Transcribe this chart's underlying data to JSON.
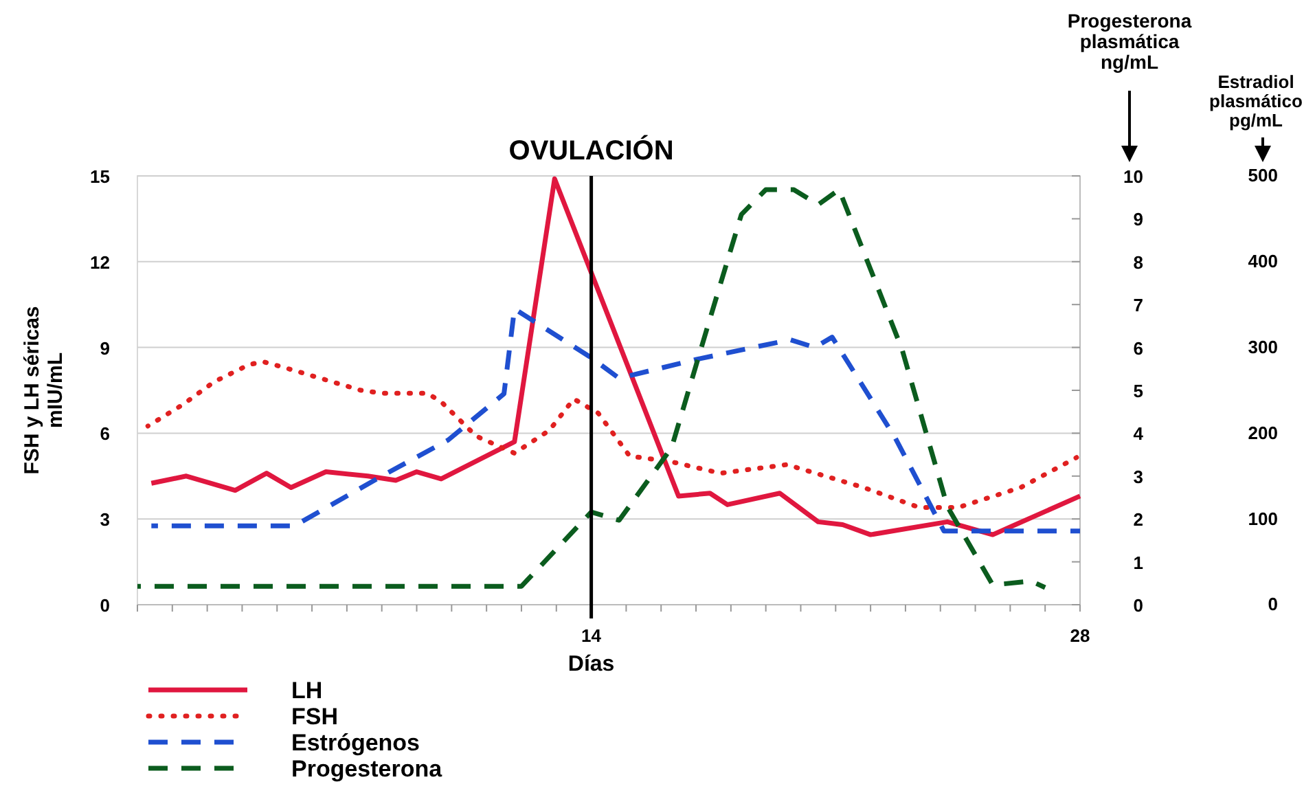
{
  "chart_data": {
    "type": "line",
    "xlabel": "Días",
    "ylabel": "FSH y LH séricas\nmIU/mL",
    "y2label": "Estradiol\nplasmático\npg/mL",
    "y3label": "Progesterona\nplasmática\nng/mL",
    "xlim": [
      1,
      28
    ],
    "xticks": [
      {
        "value": 1,
        "label": null
      },
      {
        "value": 2,
        "label": null
      },
      {
        "value": 3,
        "label": null
      },
      {
        "value": 4,
        "label": null
      },
      {
        "value": 5,
        "label": null
      },
      {
        "value": 6,
        "label": null
      },
      {
        "value": 7,
        "label": null
      },
      {
        "value": 8,
        "label": null
      },
      {
        "value": 9,
        "label": null
      },
      {
        "value": 10,
        "label": null
      },
      {
        "value": 11,
        "label": null
      },
      {
        "value": 12,
        "label": null
      },
      {
        "value": 13,
        "label": null
      },
      14,
      {
        "value": 15,
        "label": null
      },
      {
        "value": 16,
        "label": null
      },
      {
        "value": 17,
        "label": null
      },
      {
        "value": 18,
        "label": null
      },
      {
        "value": 19,
        "label": null
      },
      {
        "value": 20,
        "label": null
      },
      {
        "value": 21,
        "label": null
      },
      {
        "value": 22,
        "label": null
      },
      {
        "value": 23,
        "label": null
      },
      {
        "value": 24,
        "label": null
      },
      {
        "value": 25,
        "label": null
      },
      {
        "value": 26,
        "label": null
      },
      {
        "value": 27,
        "label": null
      },
      28
    ],
    "ylim": [
      0,
      15
    ],
    "yticks": [
      0,
      3,
      6,
      9,
      12,
      15
    ],
    "y2lim": [
      0,
      500
    ],
    "y2ticks": [
      0,
      100,
      200,
      300,
      400,
      500
    ],
    "y3lim": [
      0,
      10
    ],
    "y3ticks": [
      0,
      1,
      2,
      3,
      4,
      5,
      6,
      7,
      8,
      9,
      10
    ],
    "grid": "y",
    "legend": "bottom left",
    "ref_lines": [
      {
        "axis": "x",
        "value": 14,
        "label": "OVULACIÓN",
        "color": "#000000"
      }
    ],
    "series": [
      {
        "name": "LH",
        "color": "#e0173f",
        "line_style": "solid",
        "x": [
          1.4,
          2.4,
          3.8,
          4.7,
          5.4,
          6.4,
          7.6,
          8.4,
          9,
          9.7,
          11.8,
          12.95,
          16.5,
          17.4,
          17.9,
          19.4,
          20.5,
          21.2,
          22,
          24.2,
          25.5,
          28
        ],
        "values": [
          4.25,
          4.5,
          4,
          4.6,
          4.1,
          4.65,
          4.5,
          4.35,
          4.65,
          4.4,
          5.7,
          14.9,
          3.8,
          3.9,
          3.5,
          3.9,
          2.9,
          2.8,
          2.45,
          2.9,
          2.45,
          3.8
        ]
      },
      {
        "name": "FSH",
        "color": "#e02020",
        "line_style": "dotted",
        "x": [
          1.3,
          2.3,
          3.2,
          4.2,
          4.6,
          5.2,
          6.3,
          7.4,
          8,
          9.3,
          9.7,
          10.7,
          11.8,
          12.8,
          13.5,
          14.2,
          15.1,
          16.3,
          17.7,
          19.6,
          21.8,
          23.4,
          24.5,
          26.3,
          27.9
        ],
        "values": [
          6.25,
          7,
          7.8,
          8.4,
          8.5,
          8.3,
          7.9,
          7.5,
          7.4,
          7.4,
          7.1,
          5.9,
          5.3,
          6.1,
          7.2,
          6.7,
          5.2,
          5,
          4.6,
          4.9,
          4.1,
          3.4,
          3.4,
          4.1,
          5.15
        ]
      },
      {
        "name": "Estrógenos",
        "color": "#1f4fd0",
        "line_style": "dashed",
        "axis": "y2",
        "x": [
          1.4,
          5.5,
          8,
          9.9,
          11.5,
          11.8,
          14,
          14.8,
          17,
          19.7,
          20.4,
          20.9,
          22.7,
          24.1,
          28
        ],
        "values": [
          92,
          92,
          150,
          192,
          246,
          345,
          288,
          264,
          286,
          309,
          300,
          312,
          195,
          86,
          86
        ]
      },
      {
        "name": "Progesterona",
        "color": "#0b5c1e",
        "line_style": "dashed",
        "axis": "y3",
        "x": [
          1,
          12,
          14,
          14.8,
          16.3,
          17.3,
          18.3,
          19,
          19.8,
          20.5,
          21.1,
          22.9,
          24.2,
          25.5,
          26.6,
          27
        ],
        "values": [
          0.43,
          0.43,
          2.16,
          1.97,
          3.66,
          6.4,
          9.1,
          9.68,
          9.68,
          9.33,
          9.68,
          5.96,
          2.29,
          0.46,
          0.55,
          0.4
        ]
      }
    ]
  }
}
